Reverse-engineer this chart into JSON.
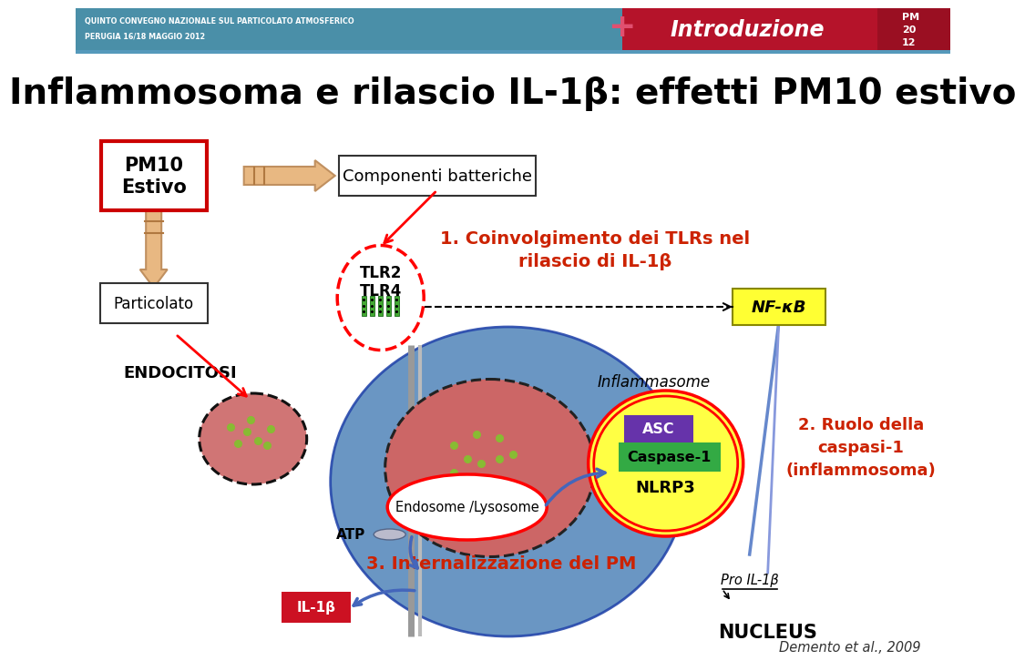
{
  "title": "Inflammosoma e rilascio IL-1β: effetti PM10 estivo",
  "header_bg_teal": "#4a8fa8",
  "header_bg_red": "#b5132a",
  "header_text1": "QUINTO CONVEGNO NAZIONALE SUL PARTICOLATO ATMOSFERICO",
  "header_text2": "PERUGIA 16/18 MAGGIO 2012",
  "intro_label": "Introduzione",
  "slide_bg": "#ffffff",
  "pm10_box_text": "PM10\nEstivo",
  "pm10_box_border": "#cc0000",
  "componenti_text": "Componenti batteriche",
  "particolato_text": "Particolato",
  "endocitosi_text": "ENDOCITOSI",
  "tlr_text": "TLR2\nTLR4",
  "label1": "1. Coinvolgimento dei TLRs nel\nrilascio di IL-1β",
  "nfkb_text": "NF-κB",
  "label2": "2. Ruolo della\ncaspasi-1\n(inflammosoma)",
  "inflammasome_text": "Inflammasome",
  "asc_text": "ASC",
  "caspase_text": "Caspase-1",
  "nlrp3_text": "NLRP3",
  "endosome_text": "Endosome /Lysosome",
  "atp_text": "ATP",
  "label3": "3. Internalizzazione del PM",
  "il1b_text": "IL-1β",
  "pro_il1b_text": "Pro IL-1β",
  "nucleus_text": "NUCLEUS",
  "citation": "Demento et al., 2009",
  "label_color": "#cc2200",
  "arrow_color": "#e8b882"
}
